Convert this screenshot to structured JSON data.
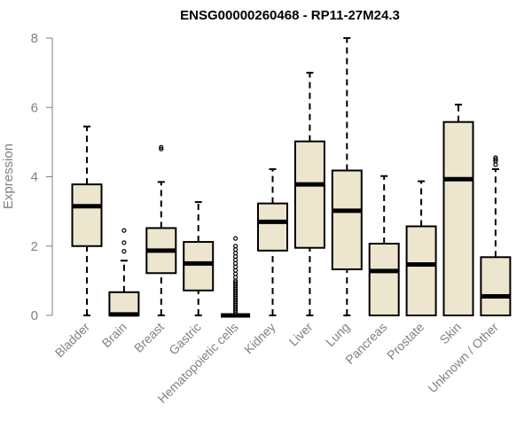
{
  "chart_data": {
    "type": "box",
    "title": "ENSG00000260468 - RP11-27M24.3",
    "xlabel": "",
    "ylabel": "Expression",
    "ylim": [
      0,
      8
    ],
    "yticks": [
      "0",
      "2",
      "4",
      "6",
      "8"
    ],
    "colors": {
      "box_fill": "#ede6cf",
      "stroke": "#000000",
      "axis_text": "#808080"
    },
    "categories": [
      "Bladder",
      "Brain",
      "Breast",
      "Gastric",
      "Hematopoietic cells",
      "Kidney",
      "Liver",
      "Lung",
      "Pancreas",
      "Prostate",
      "Skin",
      "Unknown / Other"
    ],
    "boxes": [
      {
        "min": 0.0,
        "q1": 2.0,
        "median": 3.15,
        "q3": 3.78,
        "max": 5.45,
        "outliers": []
      },
      {
        "min": 0.0,
        "q1": 0.0,
        "median": 0.03,
        "q3": 0.67,
        "max": 1.58,
        "outliers": [
          1.85,
          2.1,
          2.45
        ]
      },
      {
        "min": 0.0,
        "q1": 1.22,
        "median": 1.87,
        "q3": 2.52,
        "max": 3.85,
        "outliers": [
          4.8,
          4.85
        ]
      },
      {
        "min": 0.0,
        "q1": 0.72,
        "median": 1.5,
        "q3": 2.12,
        "max": 3.27,
        "outliers": []
      },
      {
        "min": 0.0,
        "q1": 0.0,
        "median": 0.0,
        "q3": 0.0,
        "max": 0.0,
        "outliers": [
          0.05,
          0.1,
          0.15,
          0.2,
          0.25,
          0.3,
          0.35,
          0.4,
          0.45,
          0.5,
          0.55,
          0.6,
          0.65,
          0.7,
          0.75,
          0.8,
          0.85,
          0.9,
          0.95,
          1.0,
          1.1,
          1.2,
          1.3,
          1.4,
          1.5,
          1.6,
          1.7,
          1.8,
          1.9,
          2.0,
          2.22
        ]
      },
      {
        "min": 0.0,
        "q1": 1.87,
        "median": 2.7,
        "q3": 3.23,
        "max": 4.22,
        "outliers": []
      },
      {
        "min": 0.0,
        "q1": 1.95,
        "median": 3.78,
        "q3": 5.02,
        "max": 7.0,
        "outliers": []
      },
      {
        "min": 0.0,
        "q1": 1.33,
        "median": 3.02,
        "q3": 4.18,
        "max": 8.0,
        "outliers": []
      },
      {
        "min": 0.0,
        "q1": 0.0,
        "median": 1.28,
        "q3": 2.07,
        "max": 4.02,
        "outliers": []
      },
      {
        "min": 0.0,
        "q1": 0.0,
        "median": 1.47,
        "q3": 2.57,
        "max": 3.87,
        "outliers": []
      },
      {
        "min": 0.0,
        "q1": 0.0,
        "median": 3.93,
        "q3": 5.58,
        "max": 6.08,
        "outliers": []
      },
      {
        "min": 0.0,
        "q1": 0.0,
        "median": 0.55,
        "q3": 1.68,
        "max": 4.22,
        "outliers": [
          4.35,
          4.45,
          4.5,
          4.55
        ]
      }
    ]
  }
}
